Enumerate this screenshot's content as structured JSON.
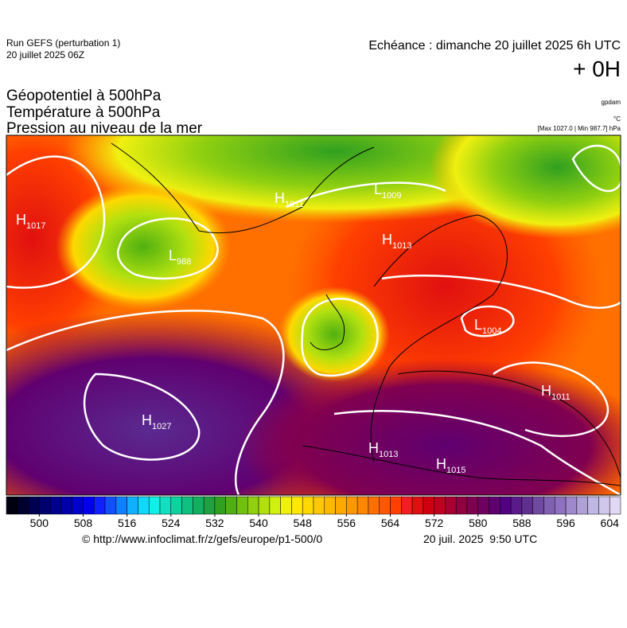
{
  "header": {
    "run": "Run GEFS (perturbation 1)",
    "run_date": "20 juillet 2025 06Z",
    "forecast": "Echéance : dimanche 20 juillet 2025 6h UTC",
    "lead": "+ 0H",
    "fields": [
      "Géopotentiel à 500hPa",
      "Température à 500hPa",
      "Pression au niveau de la mer"
    ],
    "unit_geopotential": "gpdam",
    "unit_temperature": "°C",
    "pressure_range": "[Max 1027.0 | Min 987.7] hPa"
  },
  "pressure_centers": [
    {
      "letter": "H",
      "value": 1017
    },
    {
      "letter": "L",
      "value": 988
    },
    {
      "letter": "H",
      "value": 1011
    },
    {
      "letter": "L",
      "value": 1009
    },
    {
      "letter": "H",
      "value": 1013
    },
    {
      "letter": "L",
      "value": 1004
    },
    {
      "letter": "H",
      "value": 1011
    },
    {
      "letter": "H",
      "value": 1027
    },
    {
      "letter": "H",
      "value": 1013
    },
    {
      "letter": "H",
      "value": 1015
    }
  ],
  "colorbar": {
    "min": 494,
    "max": 606,
    "ticks": [
      500,
      508,
      516,
      524,
      532,
      540,
      548,
      556,
      564,
      572,
      580,
      588,
      596,
      604
    ],
    "colors": [
      "#000010",
      "#00002e",
      "#000050",
      "#00006e",
      "#00008c",
      "#0000aa",
      "#0000cc",
      "#0000ee",
      "#1020ff",
      "#1050ff",
      "#1080ff",
      "#10b0ff",
      "#10d8ff",
      "#10f0e8",
      "#10e0c0",
      "#10d0a0",
      "#10c080",
      "#10b060",
      "#20a040",
      "#30a020",
      "#50b010",
      "#70c010",
      "#90d010",
      "#b0e010",
      "#d0f010",
      "#f0f010",
      "#ffe800",
      "#ffd800",
      "#ffc800",
      "#ffb800",
      "#ffa800",
      "#ff9800",
      "#ff8800",
      "#ff7000",
      "#ff5800",
      "#ff4000",
      "#f02020",
      "#e01010",
      "#d00010",
      "#c00020",
      "#a80030",
      "#900040",
      "#800050",
      "#700060",
      "#600070",
      "#500080",
      "#5a1a8a",
      "#603090",
      "#704aa0",
      "#8060b0",
      "#9070c0",
      "#a088cc",
      "#b0a0d8",
      "#c0b8e4",
      "#d0c8ec",
      "#e0d8f4"
    ]
  },
  "footer": {
    "source": "© http://www.infoclimat.fr/z/gefs/europe/p1-500/0",
    "generated": "20 juil. 2025  9:50 UTC"
  }
}
